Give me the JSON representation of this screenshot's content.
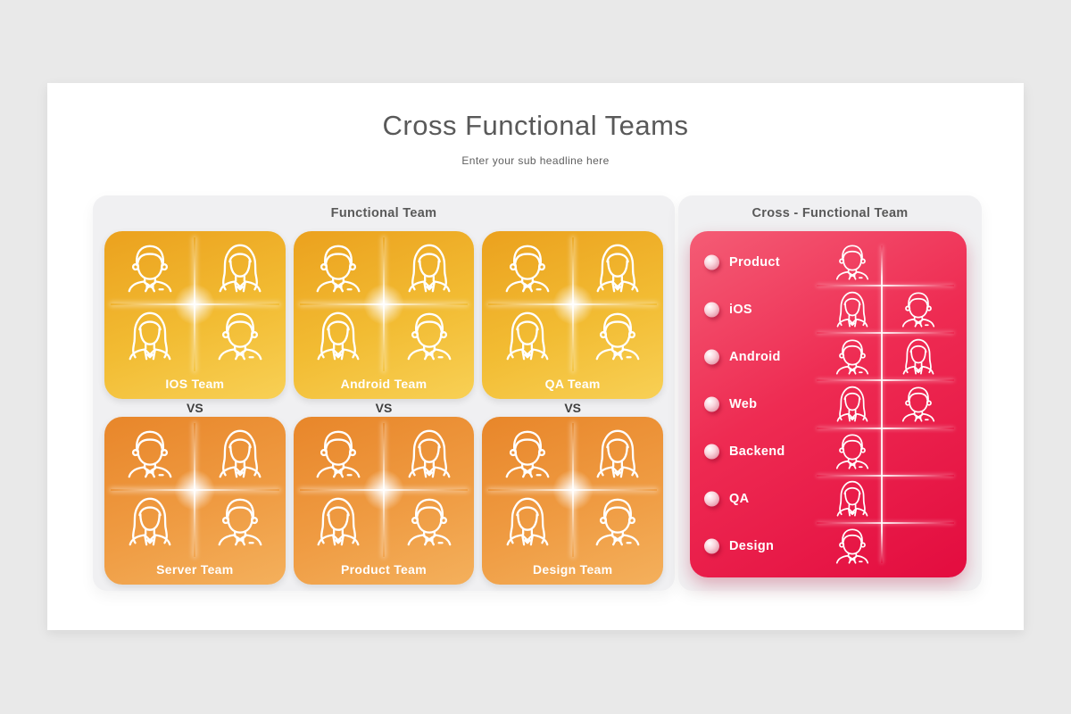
{
  "header": {
    "title": "Cross Functional Teams",
    "subtitle": "Enter your sub headline here"
  },
  "functional_panel": {
    "title": "Functional Team",
    "vs_label": "VS",
    "card_members": [
      "man",
      "woman",
      "woman",
      "man"
    ],
    "columns": [
      {
        "top": "IOS Team",
        "bottom": "Server Team"
      },
      {
        "top": "Android Team",
        "bottom": "Product Team"
      },
      {
        "top": "QA Team",
        "bottom": "Design Team"
      }
    ]
  },
  "cross_panel": {
    "title": "Cross - Functional Team",
    "rows": [
      {
        "label": "Product",
        "members": [
          "man"
        ]
      },
      {
        "label": "iOS",
        "members": [
          "woman",
          "man"
        ]
      },
      {
        "label": "Android",
        "members": [
          "man",
          "woman"
        ]
      },
      {
        "label": "Web",
        "members": [
          "woman",
          "man"
        ]
      },
      {
        "label": "Backend",
        "members": [
          "man"
        ]
      },
      {
        "label": "QA",
        "members": [
          "woman"
        ]
      },
      {
        "label": "Design",
        "members": [
          "man"
        ]
      }
    ]
  },
  "icons": {
    "man": "man-avatar-icon",
    "woman": "woman-avatar-icon",
    "bullet": "bullet-sphere-icon"
  },
  "colors": {
    "canvas_bg": "#e9e9e9",
    "slide_bg": "#ffffff",
    "panel_bg": "#f0f0f2",
    "heading_text": "#595959",
    "yellow_card_gradient": [
      "#eba11e",
      "#f8d055"
    ],
    "orange_card_gradient": [
      "#e8862a",
      "#f4b05c"
    ],
    "pink_card_gradient": [
      "#f45c75",
      "#e30c3f"
    ],
    "card_text": "#ffffff"
  }
}
